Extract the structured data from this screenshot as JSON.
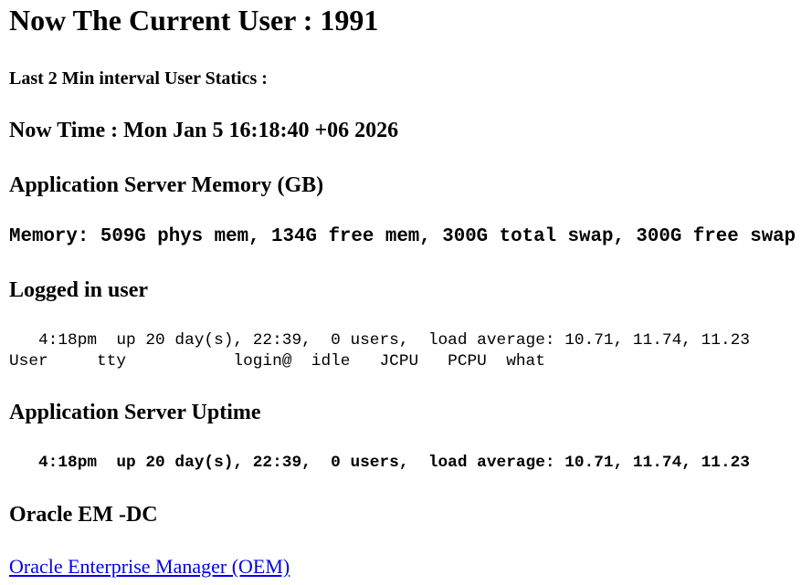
{
  "current_user_heading": "Now The Current User : 1991",
  "interval_heading": "Last 2 Min interval User Statics :",
  "now_time": "Now Time : Mon Jan 5 16:18:40 +06 2026",
  "memory_section": {
    "title": "Application Server Memory (GB)",
    "value": "Memory: 509G phys mem, 134G free mem, 300G total swap, 300G free swap"
  },
  "logged_in_section": {
    "title": "Logged in user",
    "lines": [
      "   4:18pm  up 20 day(s), 22:39,  0 users,  load average: 10.71, 11.74, 11.23",
      "User     tty           login@  idle   JCPU   PCPU  what"
    ]
  },
  "uptime_section": {
    "title": "Application Server Uptime",
    "value": "   4:18pm  up 20 day(s), 22:39,  0 users,  load average: 10.71, 11.74, 11.23"
  },
  "oem_section": {
    "title": "Oracle EM -DC",
    "link_label": "Oracle Enterprise Manager (OEM)"
  },
  "colors": {
    "link": "#0000ee"
  }
}
